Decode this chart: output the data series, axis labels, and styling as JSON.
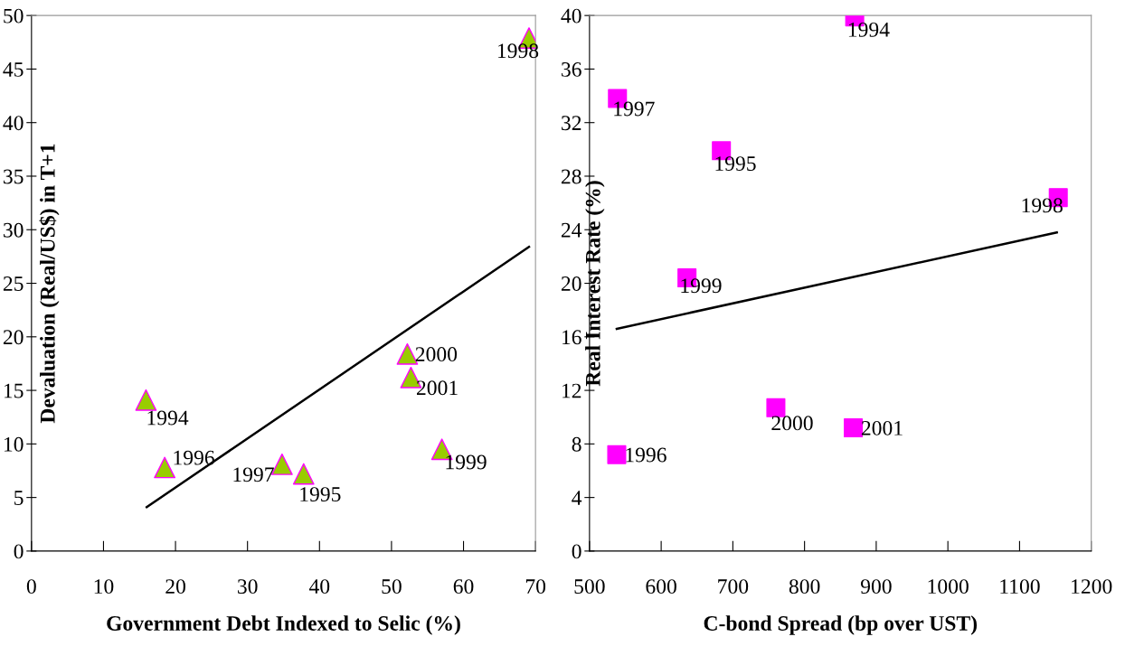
{
  "chart_data": [
    {
      "type": "scatter",
      "xlabel": "Government Debt Indexed to Selic (%)",
      "ylabel": "Devaluation (Real/US$) in T+1",
      "series": [
        {
          "marker": "triangle",
          "color": "#99cc00",
          "x": [
            15.9,
            37.8,
            18.5,
            34.8,
            69.1,
            57.0,
            52.2,
            52.7
          ],
          "values": [
            14.1,
            7.2,
            7.8,
            8.1,
            47.9,
            9.5,
            18.4,
            16.2
          ]
        },
        {
          "type": "line",
          "marker": "none",
          "color": "#000000",
          "x": [
            16.0,
            69.1
          ],
          "values": [
            4.1,
            28.4
          ]
        }
      ],
      "annotations": [
        {
          "text": "1994",
          "x": 15.9,
          "y": 14.1
        },
        {
          "text": "1995",
          "x": 37.8,
          "y": 7.2
        },
        {
          "text": "1996",
          "x": 18.5,
          "y": 7.8
        },
        {
          "text": "1997",
          "x": 34.8,
          "y": 8.1
        },
        {
          "text": "1998",
          "x": 69.1,
          "y": 47.9
        },
        {
          "text": "1999",
          "x": 57.0,
          "y": 9.5
        },
        {
          "text": "2000",
          "x": 52.2,
          "y": 18.4
        },
        {
          "text": "2001",
          "x": 52.7,
          "y": 16.2
        }
      ],
      "xlim": [
        0,
        70
      ],
      "xticks": [
        0,
        10,
        20,
        30,
        40,
        50,
        60,
        70
      ],
      "ylim": [
        0,
        50
      ],
      "yticks": [
        0,
        5,
        10,
        15,
        20,
        25,
        30,
        35,
        40,
        45,
        50
      ],
      "grid": false,
      "legend": false
    },
    {
      "type": "scatter",
      "xlabel": "C-bond Spread (bp over UST)",
      "ylabel": "Real Interest Rate (%)",
      "series": [
        {
          "marker": "square",
          "color": "#ff00ff",
          "x": [
            870,
            684,
            538,
            539,
            1154,
            636,
            760,
            868
          ],
          "values": [
            39.9,
            29.9,
            7.2,
            33.8,
            26.4,
            20.4,
            10.7,
            9.2
          ]
        },
        {
          "type": "line",
          "marker": "none",
          "color": "#000000",
          "x": [
            538,
            1152
          ],
          "values": [
            16.6,
            23.8
          ]
        }
      ],
      "annotations": [
        {
          "text": "1994",
          "x": 870,
          "y": 39.9
        },
        {
          "text": "1995",
          "x": 684,
          "y": 29.9
        },
        {
          "text": "1996",
          "x": 538,
          "y": 7.2
        },
        {
          "text": "1997",
          "x": 539,
          "y": 33.8
        },
        {
          "text": "1998",
          "x": 1154,
          "y": 26.4
        },
        {
          "text": "1999",
          "x": 636,
          "y": 20.4
        },
        {
          "text": "2000",
          "x": 760,
          "y": 10.7
        },
        {
          "text": "2001",
          "x": 868,
          "y": 9.2
        }
      ],
      "xlim": [
        500,
        1200
      ],
      "xticks": [
        500,
        600,
        700,
        800,
        900,
        1000,
        1100,
        1200
      ],
      "ylim": [
        0,
        40
      ],
      "yticks": [
        0,
        4,
        8,
        12,
        16,
        20,
        24,
        28,
        32,
        36,
        40
      ],
      "grid": false,
      "legend": false
    }
  ]
}
